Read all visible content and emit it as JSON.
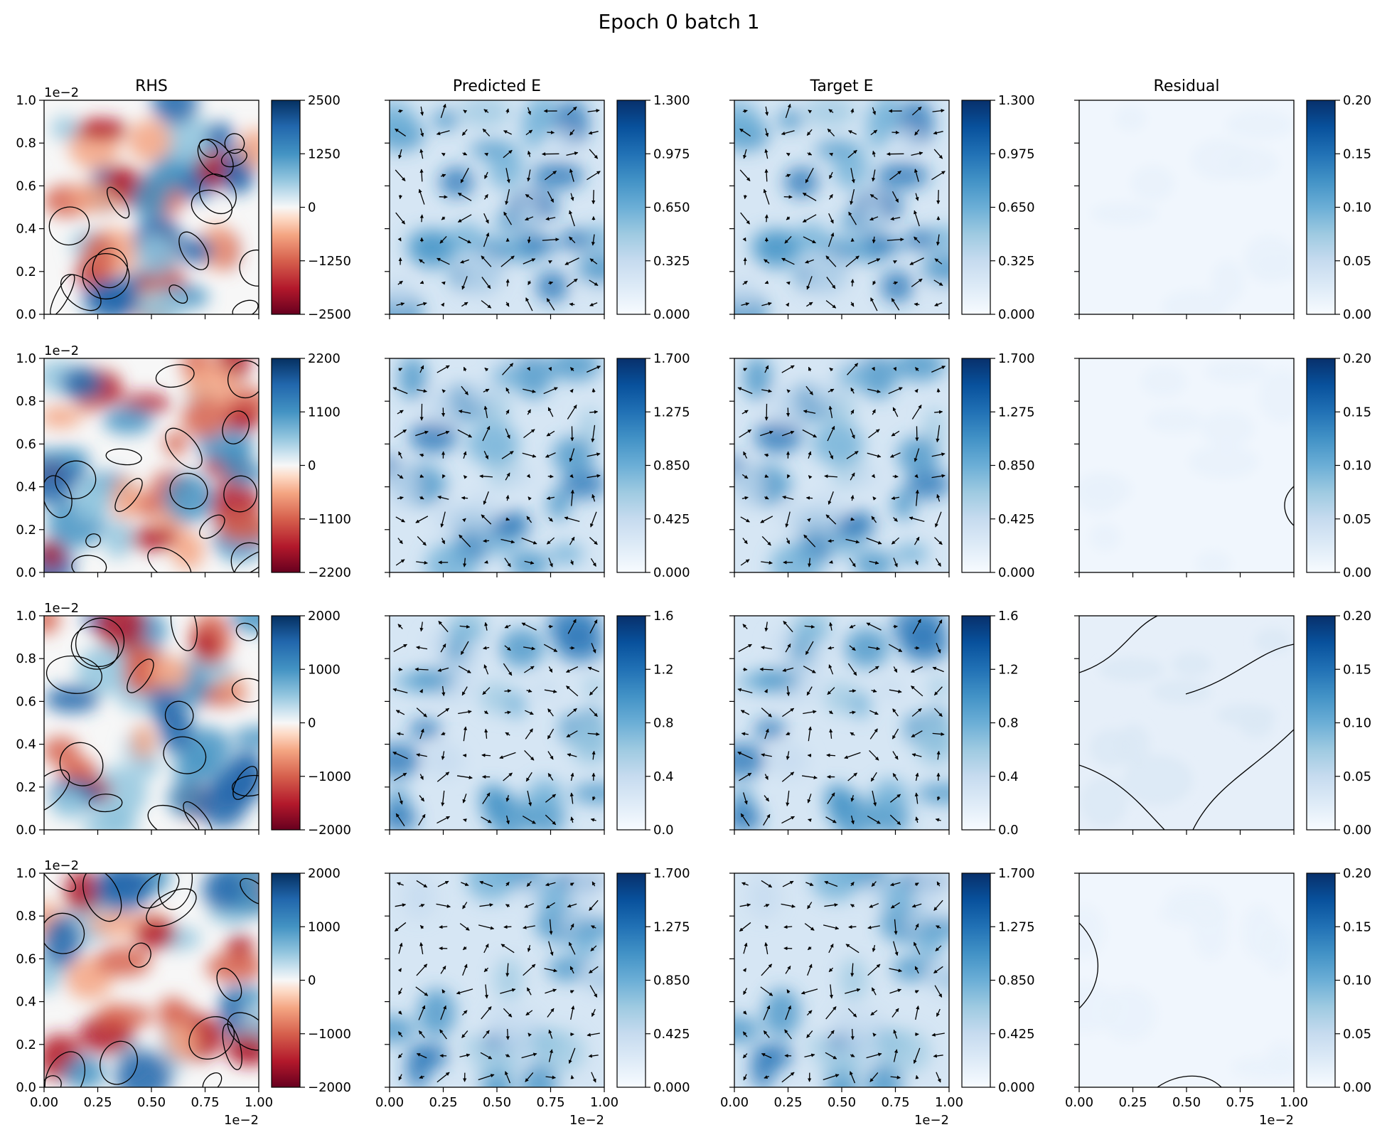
{
  "chart_data": {
    "type": "heatmap",
    "title": "Epoch 0 batch 1",
    "column_titles": [
      "RHS",
      "Predicted E",
      "Target E",
      "Residual"
    ],
    "x_ticks": [
      "0.00",
      "0.25",
      "0.50",
      "0.75",
      "1.00"
    ],
    "y_ticks": [
      "0.0",
      "0.2",
      "0.4",
      "0.6",
      "0.8",
      "1.0"
    ],
    "offset_label": "1e−2",
    "axis_range": {
      "x": [
        0,
        0.01
      ],
      "y": [
        0,
        0.01
      ]
    },
    "colormaps": {
      "RHS": "RdBu",
      "Predicted E": "Blues",
      "Target E": "Blues",
      "Residual": "Blues"
    },
    "rows": [
      {
        "rhs_colorbar": [
          "2500",
          "1250",
          "0",
          "−1250",
          "−2500"
        ],
        "e_colorbar": [
          "1.300",
          "0.975",
          "0.650",
          "0.325",
          "0.000"
        ],
        "residual_colorbar": [
          "0.20",
          "0.15",
          "0.10",
          "0.05",
          "0.00"
        ]
      },
      {
        "rhs_colorbar": [
          "2200",
          "1100",
          "0",
          "−1100",
          "−2200"
        ],
        "e_colorbar": [
          "1.700",
          "1.275",
          "0.850",
          "0.425",
          "0.000"
        ],
        "residual_colorbar": [
          "0.20",
          "0.15",
          "0.10",
          "0.05",
          "0.00"
        ]
      },
      {
        "rhs_colorbar": [
          "2000",
          "1000",
          "0",
          "−1000",
          "−2000"
        ],
        "e_colorbar": [
          "1.6",
          "1.2",
          "0.8",
          "0.4",
          "0.0"
        ],
        "residual_colorbar": [
          "0.20",
          "0.15",
          "0.10",
          "0.05",
          "0.00"
        ]
      },
      {
        "rhs_colorbar": [
          "2000",
          "1000",
          "0",
          "−1000",
          "−2000"
        ],
        "e_colorbar": [
          "1.700",
          "1.275",
          "0.850",
          "0.425",
          "0.000"
        ],
        "residual_colorbar": [
          "0.20",
          "0.15",
          "0.10",
          "0.05",
          "0.00"
        ]
      }
    ],
    "colors": {
      "rdbu_neg": "#67001f",
      "rdbu_mid": "#f7f7f7",
      "rdbu_pos": "#053061",
      "blues_low": "#f7fbff",
      "blues_high": "#08306b"
    }
  }
}
